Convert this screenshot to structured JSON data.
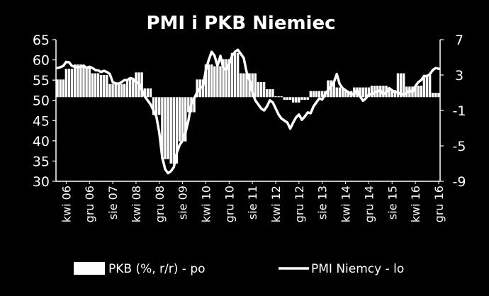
{
  "chart_data": {
    "type": "bar+line",
    "title": "PMI i PKB Niemiec",
    "left_axis": {
      "ylim": [
        30,
        65
      ],
      "ticks": [
        65,
        60,
        55,
        50,
        45,
        40,
        35,
        30
      ]
    },
    "right_axis": {
      "ylim": [
        -9,
        7
      ],
      "ticks": [
        7,
        3,
        -1,
        -5,
        -9
      ]
    },
    "bar_baseline": 0.5,
    "x_tick_labels": [
      "kwi 06",
      "gru 06",
      "sie 07",
      "kwi 08",
      "gru 08",
      "sie 09",
      "kwi 10",
      "gru 10",
      "sie 11",
      "kwi 12",
      "gru 12",
      "sie 13",
      "kwi 14",
      "gru 14",
      "sie 15",
      "kwi 16",
      "gru 16"
    ],
    "x_tick_start_index": 3,
    "x_tick_step": 8,
    "grid": false,
    "legend_position": "bottom",
    "series": [
      {
        "name": "PKB (%, r/r) - po",
        "kind": "bar",
        "axis": "right",
        "values": [
          2.5,
          2.5,
          2.5,
          3.7,
          3.7,
          3.7,
          4.2,
          4.2,
          4.2,
          4.0,
          4.0,
          4.0,
          3.2,
          3.2,
          3.2,
          3.0,
          3.0,
          3.0,
          2.0,
          2.0,
          2.0,
          2.0,
          2.0,
          2.0,
          2.5,
          2.5,
          2.5,
          3.3,
          3.3,
          3.3,
          1.5,
          1.5,
          1.5,
          -1.5,
          -1.5,
          -1.5,
          -6.5,
          -6.5,
          -6.5,
          -7.0,
          -7.0,
          -7.0,
          -4.5,
          -4.5,
          -4.5,
          -1.2,
          -1.2,
          -1.2,
          2.5,
          2.5,
          2.5,
          4.2,
          4.2,
          4.2,
          4.0,
          4.0,
          4.0,
          4.8,
          4.8,
          4.8,
          5.5,
          5.5,
          5.5,
          3.2,
          3.2,
          3.2,
          3.2,
          3.2,
          3.2,
          2.2,
          2.2,
          2.2,
          1.4,
          1.4,
          1.4,
          0.6,
          0.6,
          0.6,
          0.2,
          0.2,
          0.2,
          -0.1,
          -0.1,
          -0.1,
          0.2,
          0.2,
          0.2,
          1.2,
          1.2,
          1.2,
          1.2,
          1.2,
          1.2,
          2.4,
          2.4,
          2.4,
          1.6,
          1.6,
          1.6,
          1.2,
          1.2,
          1.2,
          1.6,
          1.6,
          1.6,
          1.6,
          1.6,
          1.6,
          1.8,
          1.8,
          1.8,
          1.8,
          1.8,
          1.8,
          1.3,
          1.3,
          1.3,
          3.2,
          3.2,
          3.2,
          1.7,
          1.7,
          1.7,
          1.8,
          1.8,
          1.8,
          3.0,
          3.0,
          3.0,
          1.0,
          1.0,
          1.0
        ]
      },
      {
        "name": "PMI Niemcy - lo",
        "kind": "line",
        "axis": "left",
        "values": [
          58.0,
          58.2,
          58.5,
          59.5,
          59.4,
          58.5,
          58.3,
          58.2,
          58.2,
          58.6,
          58.0,
          58.3,
          58.0,
          57.5,
          57.4,
          57.0,
          57.3,
          57.0,
          56.5,
          54.5,
          54.2,
          54.1,
          54.5,
          55.0,
          55.0,
          55.5,
          55.3,
          54.5,
          54.2,
          52.5,
          51.0,
          50.0,
          49.0,
          47.5,
          46.0,
          42.0,
          36.0,
          33.0,
          32.0,
          32.5,
          33.5,
          37.0,
          39.0,
          40.0,
          42.0,
          45.0,
          49.0,
          50.5,
          52.0,
          53.0,
          53.4,
          57.5,
          60.0,
          62.0,
          61.0,
          58.5,
          61.0,
          58.0,
          57.5,
          59.0,
          61.0,
          62.0,
          62.5,
          61.5,
          60.5,
          57.0,
          55.0,
          52.0,
          50.0,
          49.0,
          48.0,
          47.5,
          48.5,
          50.0,
          49.5,
          48.0,
          46.5,
          45.5,
          45.0,
          44.5,
          43.0,
          44.5,
          45.8,
          46.5,
          45.2,
          46.0,
          47.0,
          46.8,
          48.5,
          49.5,
          50.5,
          50.2,
          51.5,
          52.5,
          53.5,
          54.5,
          56.5,
          54.0,
          53.0,
          52.5,
          52.0,
          51.5,
          51.5,
          52.5,
          51.0,
          49.9,
          50.5,
          51.5,
          51.5,
          52.0,
          52.2,
          52.5,
          51.5,
          52.0,
          53.0,
          52.5,
          52.0,
          52.0,
          51.5,
          51.5,
          51.8,
          52.5,
          52.0,
          53.5,
          54.5,
          55.0,
          56.0,
          56.0,
          56.5,
          57.5,
          58.0,
          57.8
        ]
      }
    ]
  }
}
